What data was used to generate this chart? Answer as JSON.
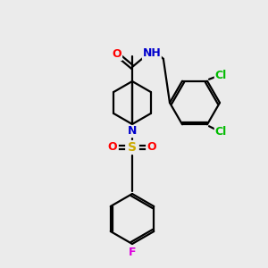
{
  "bg_color": "#ebebeb",
  "bond_color": "#000000",
  "colors": {
    "O": "#ff0000",
    "N": "#0000cc",
    "S": "#ccaa00",
    "Cl": "#00bb00",
    "F": "#dd00dd",
    "C": "#000000"
  }
}
